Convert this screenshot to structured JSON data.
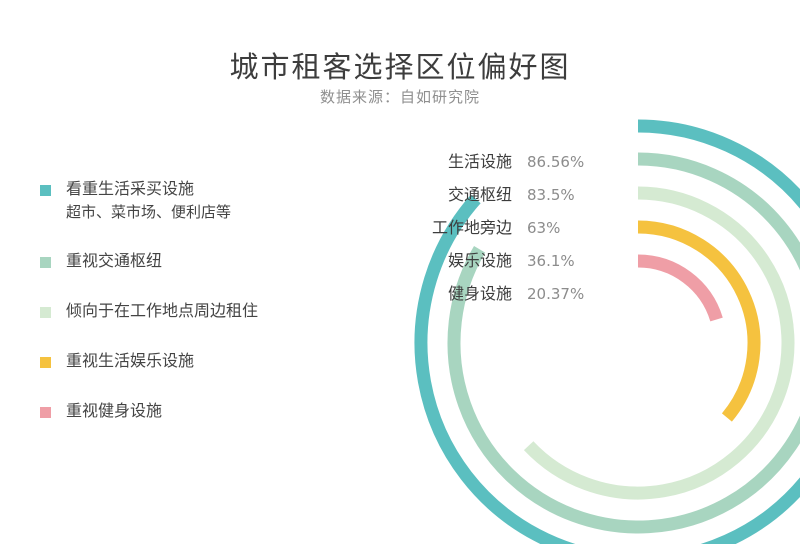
{
  "title": "城市租客选择区位偏好图",
  "subtitle": "数据来源：自如研究院",
  "legend": [
    {
      "label": "看重生活采买设施",
      "sublabel": "超市、菜市场、便利店等",
      "color": "#5bbfc0"
    },
    {
      "label": "重视交通枢纽",
      "color": "#a8d5c0"
    },
    {
      "label": "倾向于在工作地点周边租住",
      "color": "#d5ead2"
    },
    {
      "label": "重视生活娱乐设施",
      "color": "#f5c23f"
    },
    {
      "label": "重视健身设施",
      "color": "#ef9ea6"
    }
  ],
  "chart_data": {
    "type": "radial-bar",
    "title": "城市租客选择区位偏好图",
    "subtitle": "数据来源：自如研究院",
    "categories": [
      "生活设施",
      "交通枢纽",
      "工作地旁边",
      "娱乐设施",
      "健身设施"
    ],
    "values": [
      86.56,
      83.5,
      63,
      36.1,
      20.37
    ],
    "value_labels": [
      "86.56%",
      "83.5%",
      "63%",
      "36.1%",
      "20.37%"
    ],
    "colors": [
      "#5bbfc0",
      "#a8d5c0",
      "#d5ead2",
      "#f5c23f",
      "#ef9ea6"
    ],
    "max": 100,
    "unit": "%"
  }
}
